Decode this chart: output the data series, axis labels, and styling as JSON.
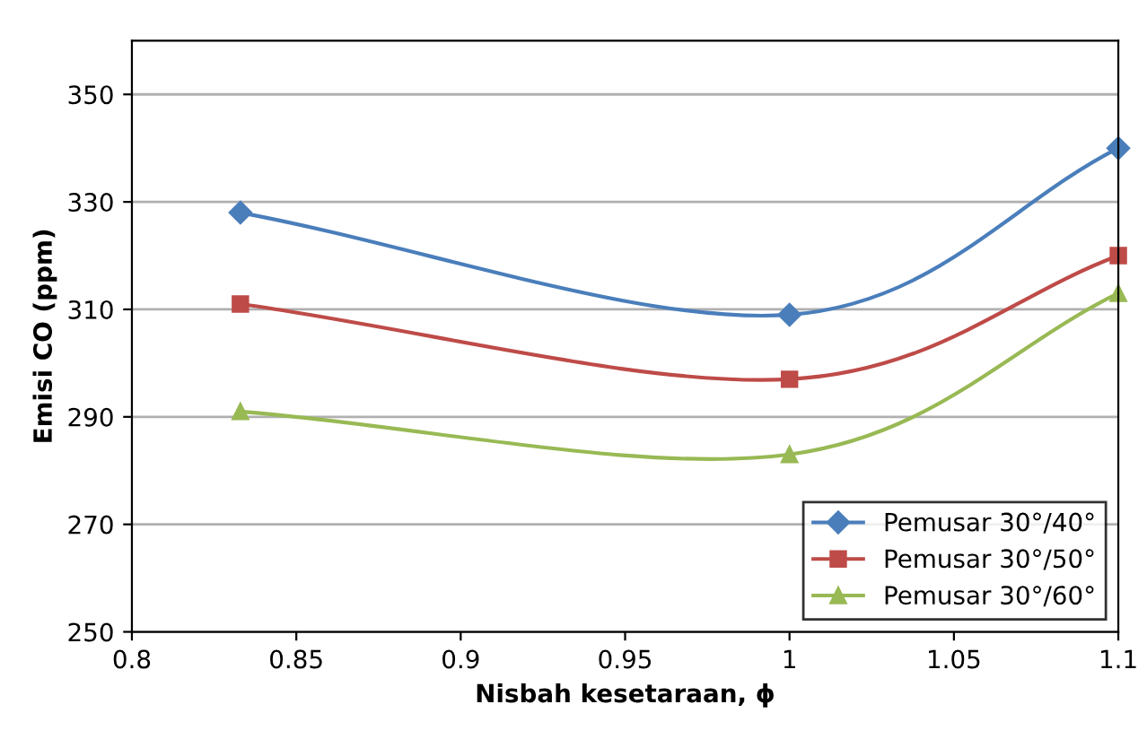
{
  "chart_data": {
    "type": "line",
    "xlabel": "Nisbah kesetaraan, ϕ",
    "ylabel": "Emisi CO (ppm)",
    "x": [
      0.833,
      1.0,
      1.1
    ],
    "series": [
      {
        "name": "Pemusar 30°/40°",
        "color": "#4a7ebb",
        "values": [
          328,
          309,
          340
        ],
        "marker": "diamond"
      },
      {
        "name": "Pemusar 30°/50°",
        "color": "#be4b48",
        "values": [
          311,
          297,
          320
        ],
        "marker": "square"
      },
      {
        "name": "Pemusar 30°/60°",
        "color": "#98b954",
        "values": [
          291,
          283,
          313
        ],
        "marker": "triangle"
      }
    ],
    "xlim": [
      0.8,
      1.1
    ],
    "xticks": [
      0.8,
      0.85,
      0.9,
      0.95,
      1,
      1.05,
      1.1
    ],
    "ylim": [
      250,
      360
    ],
    "yticks": [
      250,
      270,
      290,
      310,
      330,
      350
    ],
    "grid": "y",
    "legend": "bottom right",
    "line_style": "solid"
  }
}
